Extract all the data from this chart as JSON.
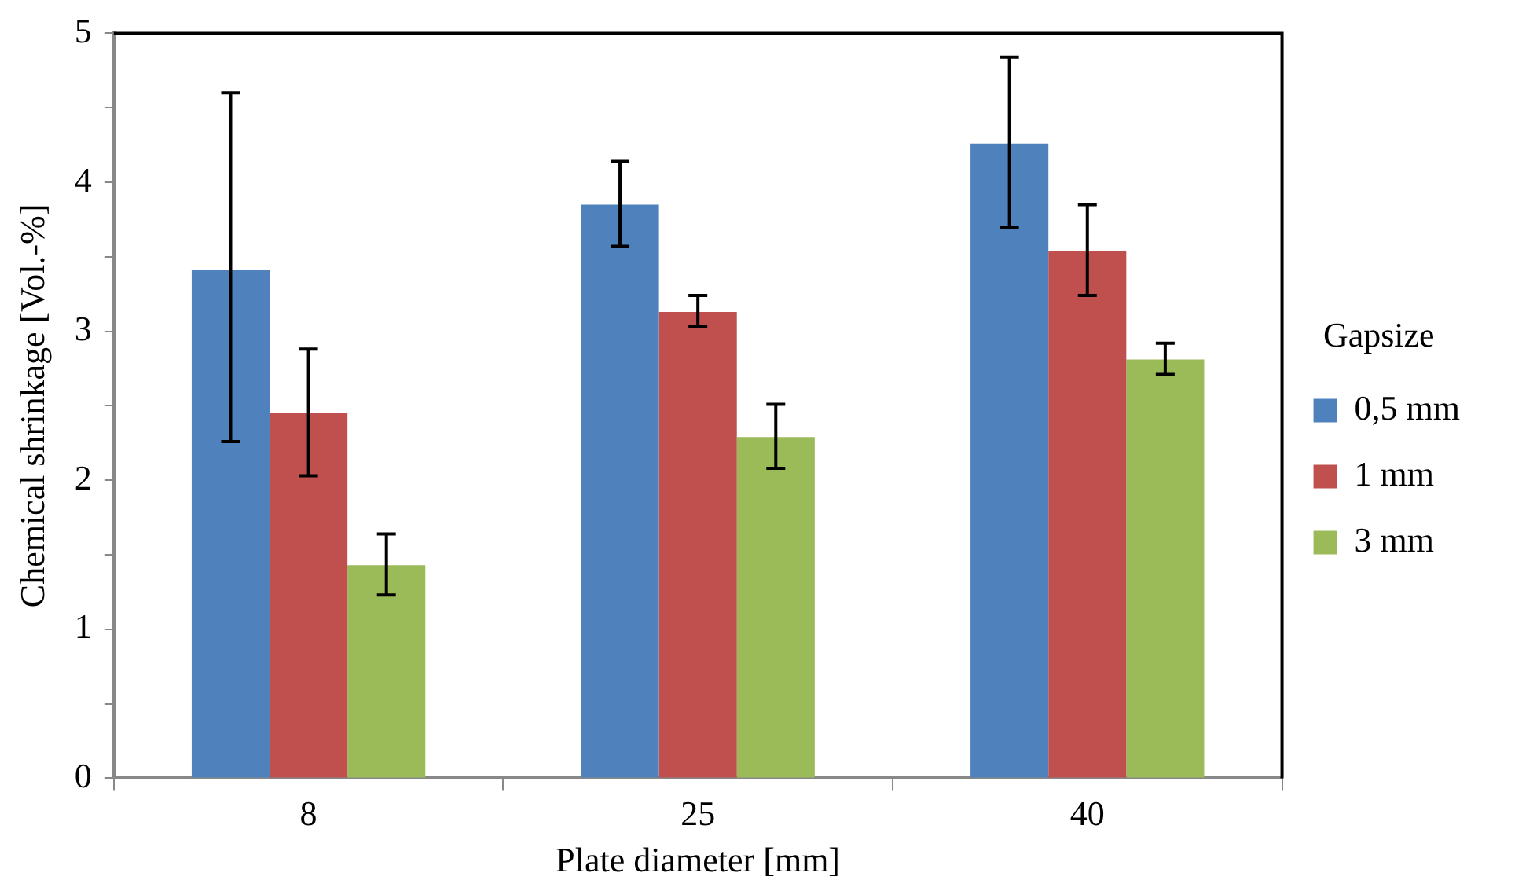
{
  "chart_data": {
    "type": "bar",
    "xlabel": "Plate diameter [mm]",
    "ylabel": "Chemical shrinkage [Vol.-%]",
    "legend_title": "Gapsize",
    "categories": [
      "8",
      "25",
      "40"
    ],
    "series": [
      {
        "name": "0,5 mm",
        "color": "#4f81bd",
        "values": [
          3.41,
          3.85,
          4.26
        ],
        "errors": [
          [
            2.26,
            4.6
          ],
          [
            3.57,
            4.14
          ],
          [
            3.7,
            4.84
          ]
        ]
      },
      {
        "name": "1 mm",
        "color": "#c0504d",
        "values": [
          2.45,
          3.13,
          3.54
        ],
        "errors": [
          [
            2.03,
            2.88
          ],
          [
            3.03,
            3.24
          ],
          [
            3.24,
            3.85
          ]
        ]
      },
      {
        "name": "3 mm",
        "color": "#9bbb59",
        "values": [
          1.43,
          2.29,
          2.81
        ],
        "errors": [
          [
            1.23,
            1.64
          ],
          [
            2.08,
            2.51
          ],
          [
            2.71,
            2.92
          ]
        ]
      }
    ],
    "ylim": [
      0,
      5
    ],
    "yticks": [
      0,
      {
        "value": 0.5,
        "label": null
      },
      1,
      {
        "value": 1.5,
        "label": null
      },
      2,
      {
        "value": 2.5,
        "label": null
      },
      3,
      {
        "value": 3.5,
        "label": null
      },
      4,
      {
        "value": 4.5,
        "label": null
      },
      5
    ],
    "grid": false,
    "legend": "right"
  }
}
